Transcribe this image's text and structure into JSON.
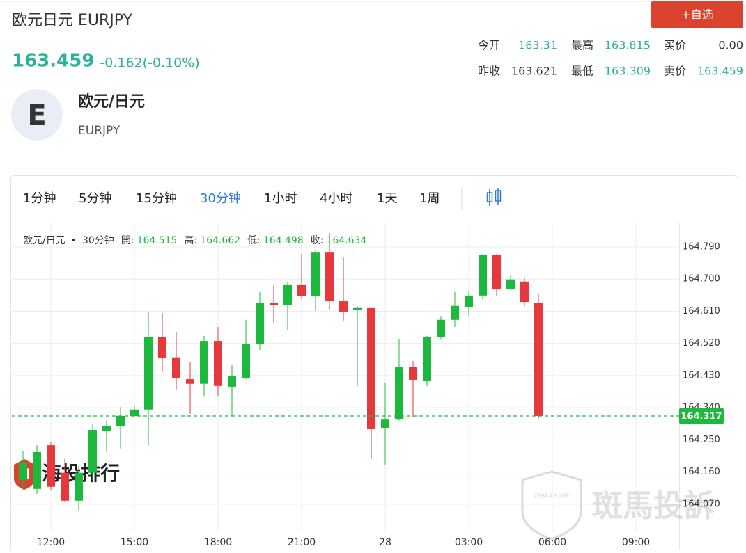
{
  "header": {
    "title": "欧元日元 EURJPY",
    "price": "163.459",
    "change": "-0.162(-0.10%)",
    "button": "+自选"
  },
  "stats": [
    {
      "label": "今开",
      "value": "163.31",
      "color": "#2bb39a"
    },
    {
      "label": "最高",
      "value": "163.815",
      "color": "#2bb39a"
    },
    {
      "label": "买价",
      "value": "0.00",
      "color": "#333333"
    },
    {
      "label": "昨收",
      "value": "163.621",
      "color": "#333333"
    },
    {
      "label": "最低",
      "value": "163.309",
      "color": "#2bb39a"
    },
    {
      "label": "卖价",
      "value": "163.459",
      "color": "#2bb39a"
    }
  ],
  "instrument": {
    "icon": "E",
    "name": "欧元/日元",
    "code": "EURJPY"
  },
  "tabs": [
    "1分钟",
    "5分钟",
    "15分钟",
    "30分钟",
    "1小时",
    "4小时",
    "1天",
    "1周"
  ],
  "active_tab": 3,
  "chart_data": {
    "type": "candlestick",
    "legend": {
      "name": "欧元/日元",
      "separator": "•",
      "period": "30分钟",
      "open_label": "開:",
      "open": 164.515,
      "high_label": "高:",
      "high": 164.662,
      "low_label": "低:",
      "low": 164.498,
      "close_label": "收:",
      "close": 164.634
    },
    "candles": {
      "open": [
        164.138,
        164.113,
        164.235,
        164.158,
        164.08,
        164.158,
        164.274,
        164.288,
        164.317,
        164.335,
        164.537,
        164.481,
        164.42,
        164.407,
        164.527,
        164.399,
        164.424,
        164.518,
        164.634,
        164.628,
        164.683,
        164.652,
        164.776,
        164.638,
        164.613,
        164.619,
        164.284,
        164.307,
        164.455,
        164.414,
        164.537,
        164.586,
        164.621,
        164.654,
        164.767,
        164.671,
        164.693,
        164.634
      ],
      "high": [
        164.22,
        164.235,
        164.245,
        164.197,
        164.177,
        164.294,
        164.304,
        164.342,
        164.346,
        164.609,
        164.605,
        164.551,
        164.469,
        164.541,
        164.566,
        164.459,
        164.586,
        164.664,
        164.683,
        164.693,
        164.771,
        164.78,
        164.829,
        164.761,
        164.625,
        164.619,
        164.411,
        164.531,
        164.471,
        164.541,
        164.595,
        164.664,
        164.667,
        164.771,
        164.771,
        164.712,
        164.702,
        164.66
      ],
      "low": [
        164.109,
        164.099,
        164.109,
        164.076,
        164.051,
        164.138,
        164.216,
        164.226,
        164.313,
        164.235,
        164.44,
        164.391,
        164.323,
        164.372,
        164.372,
        164.317,
        164.42,
        164.502,
        164.576,
        164.557,
        164.644,
        164.611,
        164.615,
        164.582,
        164.401,
        164.197,
        164.181,
        164.304,
        164.313,
        164.401,
        164.533,
        164.566,
        164.595,
        164.64,
        164.654,
        164.669,
        164.625,
        164.309
      ],
      "close": [
        164.187,
        164.216,
        164.119,
        164.08,
        164.158,
        164.278,
        164.288,
        164.317,
        164.335,
        164.537,
        164.479,
        164.424,
        164.407,
        164.527,
        164.401,
        164.43,
        164.518,
        164.634,
        164.628,
        164.683,
        164.652,
        164.776,
        164.638,
        164.609,
        164.619,
        164.28,
        164.307,
        164.455,
        164.418,
        164.537,
        164.586,
        164.625,
        164.654,
        164.767,
        164.671,
        164.699,
        164.636,
        164.317
      ]
    },
    "up_color": "#1db83e",
    "down_color": "#e5393e",
    "xlim": [
      -0.8,
      47.1
    ],
    "xticks": [
      {
        "value": 2,
        "label": "12:00"
      },
      {
        "value": 8,
        "label": "15:00"
      },
      {
        "value": 14,
        "label": "18:00"
      },
      {
        "value": 20,
        "label": "21:00"
      },
      {
        "value": 26,
        "label": "28"
      },
      {
        "value": 32,
        "label": "03:00"
      },
      {
        "value": 38,
        "label": "06:00"
      },
      {
        "value": 44,
        "label": "09:00"
      }
    ],
    "ylim": [
      163.992,
      164.858
    ],
    "yticks": [
      {
        "value": 164.79,
        "label": "164.790"
      },
      {
        "value": 164.7,
        "label": "164.700"
      },
      {
        "value": 164.61,
        "label": "164.610"
      },
      {
        "value": 164.52,
        "label": "164.520"
      },
      {
        "value": 164.43,
        "label": "164.430"
      },
      {
        "value": 164.34,
        "label": "164.340"
      },
      {
        "value": 164.25,
        "label": "164.250"
      },
      {
        "value": 164.16,
        "label": "164.160"
      },
      {
        "value": 164.07,
        "label": "164.070"
      }
    ],
    "grid": true,
    "last_price": 164.317
  },
  "watermarks": {
    "left": "海投排行",
    "badge": "ZEBRA RANK",
    "right": "斑馬投訴"
  }
}
